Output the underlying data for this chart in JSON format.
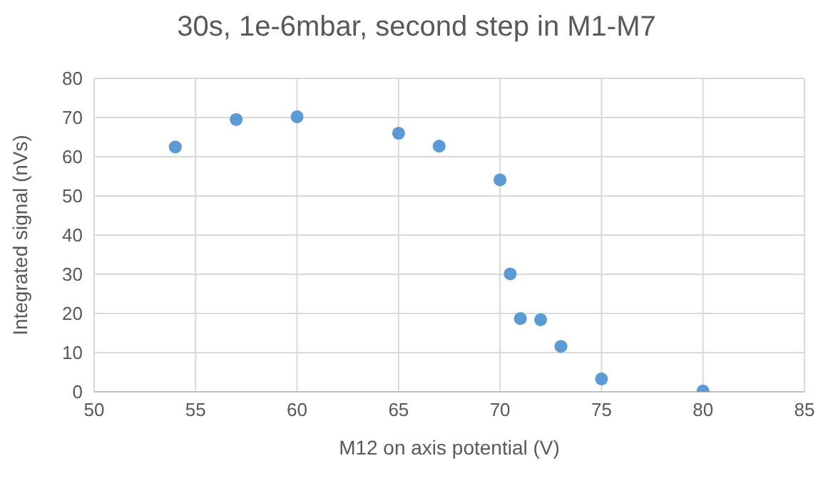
{
  "chart_data": {
    "type": "scatter",
    "title": "30s, 1e-6mbar, second step in M1-M7",
    "xlabel": "M12 on axis potential (V)",
    "ylabel": "Integrated signal (nVs)",
    "x": [
      54,
      57,
      60,
      65,
      67,
      70,
      70.5,
      71,
      72,
      73,
      75,
      80
    ],
    "series": [
      {
        "color": "#5b9bd5",
        "values": [
          62.5,
          69.5,
          70.2,
          66,
          62.7,
          54.1,
          30.1,
          18.7,
          18.4,
          11.6,
          3.3,
          0.2
        ]
      }
    ],
    "xlim": [
      50,
      85
    ],
    "xticks": [
      50,
      55,
      60,
      65,
      70,
      75,
      80,
      85
    ],
    "ylim": [
      0,
      80
    ],
    "yticks": [
      0,
      10,
      20,
      30,
      40,
      50,
      60,
      70,
      80
    ],
    "grid": true,
    "marker": "circle",
    "legend": false
  }
}
